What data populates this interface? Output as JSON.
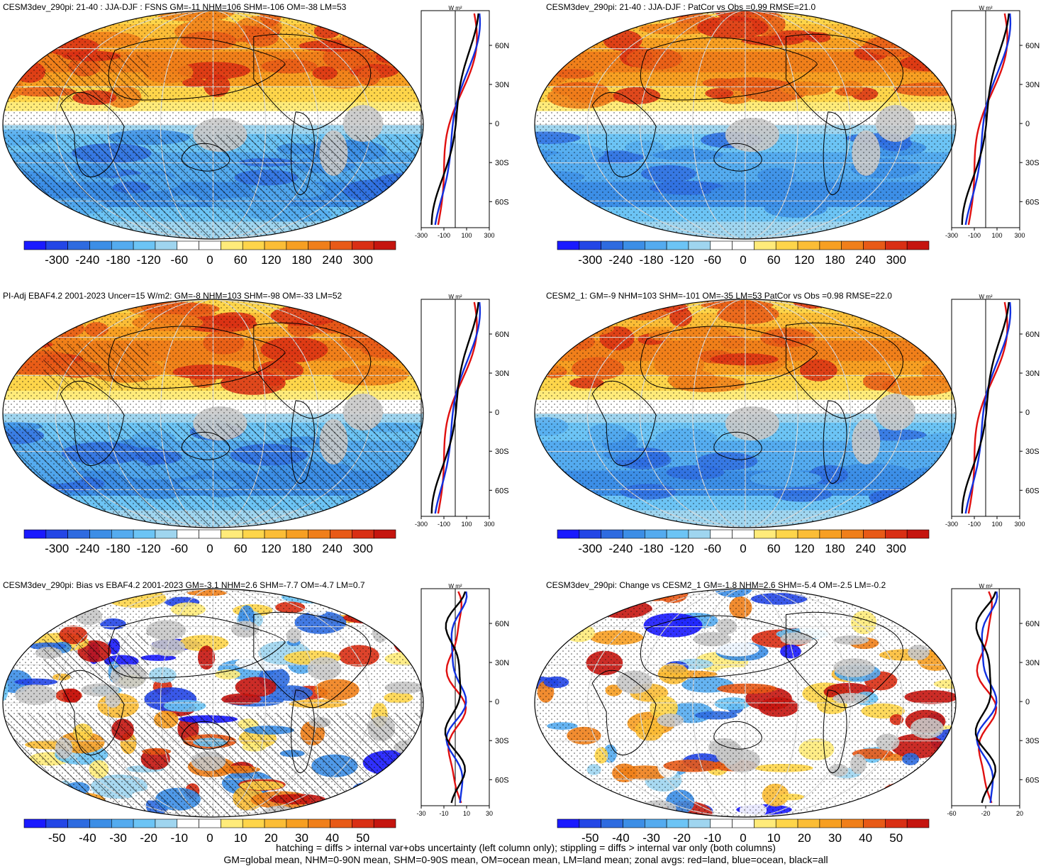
{
  "panels": [
    {
      "title": "CESM3dev_290pi: 21-40 : JJA-DJF : FSNS GM=-11 NHM=106 SHM=-106 OM=-38 LM=53",
      "kind": "abs",
      "colorbar_ticks": [
        "-300",
        "-240",
        "-180",
        "-120",
        "-60",
        "0",
        "60",
        "120",
        "180",
        "240",
        "300"
      ],
      "zonal_xticks": [
        "-300",
        "-100",
        "100",
        "300"
      ],
      "zonal_xrange": [
        -300,
        300
      ],
      "hatched": true
    },
    {
      "title": "CESM3dev_290pi: 21-40 : JJA-DJF : PatCor vs Obs =0.99 RMSE=21.0",
      "kind": "abs",
      "colorbar_ticks": [
        "-300",
        "-240",
        "-180",
        "-120",
        "-60",
        "0",
        "60",
        "120",
        "180",
        "240",
        "300"
      ],
      "zonal_xticks": [
        "-300",
        "-100",
        "100",
        "300"
      ],
      "zonal_xrange": [
        -300,
        300
      ],
      "hatched": false
    },
    {
      "title": "PI-Adj EBAF4.2 2001-2023 Uncer=15 W/m2: GM=-8 NHM=103 SHM=-98 OM=-33 LM=52",
      "kind": "abs",
      "colorbar_ticks": [
        "-300",
        "-240",
        "-180",
        "-120",
        "-60",
        "0",
        "60",
        "120",
        "180",
        "240",
        "300"
      ],
      "zonal_xticks": [
        "-300",
        "-100",
        "100",
        "300"
      ],
      "zonal_xrange": [
        -300,
        300
      ],
      "hatched": true
    },
    {
      "title": "CESM2_1: GM=-9 NHM=103 SHM=-101 OM=-35 LM=53 PatCor vs Obs =0.98 RMSE=22.0",
      "kind": "abs",
      "colorbar_ticks": [
        "-300",
        "-240",
        "-180",
        "-120",
        "-60",
        "0",
        "60",
        "120",
        "180",
        "240",
        "300"
      ],
      "zonal_xticks": [
        "-300",
        "-100",
        "100",
        "300"
      ],
      "zonal_xrange": [
        -300,
        300
      ],
      "hatched": false
    },
    {
      "title": "CESM3dev_290pi: Bias vs EBAF4.2 2001-2023 GM=-3.1 NHM=2.6 SHM=-7.7 OM=-4.7 LM=0.7",
      "kind": "diff",
      "colorbar_ticks": [
        "-50",
        "-40",
        "-30",
        "-20",
        "-10",
        "0",
        "10",
        "20",
        "30",
        "40",
        "50"
      ],
      "zonal_xticks": [
        "-30",
        "-10",
        "10",
        "30"
      ],
      "zonal_xrange": [
        -30,
        30
      ],
      "hatched": true
    },
    {
      "title": "CESM3dev_290pi: Change vs CESM2_1 GM=-1.8 NHM=2.6 SHM=-5.4 OM=-2.5 LM=-0.2",
      "kind": "diff",
      "colorbar_ticks": [
        "-50",
        "-40",
        "-30",
        "-20",
        "-10",
        "0",
        "10",
        "20",
        "30",
        "40",
        "50"
      ],
      "zonal_xticks": [
        "-60",
        "-20",
        "20"
      ],
      "zonal_xrange": [
        -70,
        30
      ],
      "hatched": false
    }
  ],
  "zonal_units": "W m²",
  "zonal_yticks": [
    "60N",
    "30N",
    "0",
    "30S",
    "60S"
  ],
  "colors": {
    "scale": [
      "#1a1aff",
      "#2346e6",
      "#2e6be0",
      "#3c8ee6",
      "#54abef",
      "#6cc4f5",
      "#9fd5ef",
      "#ffffff",
      "#ffffff",
      "#ffeb7a",
      "#fed54a",
      "#fbbd36",
      "#f79f22",
      "#f07f1a",
      "#e85a17",
      "#d92f14",
      "#c5150f"
    ],
    "land": "#c8c8c8",
    "zonal_land": "#e01010",
    "zonal_ocean": "#1030e0",
    "zonal_all": "#000000"
  },
  "chart_data": [
    {
      "type": "heatmap",
      "title": "CESM3dev_290pi: 21-40 : JJA-DJF : FSNS GM=-11 NHM=106 SHM=-106 OM=-38 LM=53",
      "colorbar": [
        -300,
        300
      ],
      "zonal_series": [
        "land",
        "ocean",
        "all"
      ]
    },
    {
      "type": "heatmap",
      "title": "CESM3dev_290pi: 21-40 : JJA-DJF : PatCor vs Obs =0.99 RMSE=21.0",
      "colorbar": [
        -300,
        300
      ],
      "zonal_series": [
        "land",
        "ocean",
        "all"
      ]
    },
    {
      "type": "heatmap",
      "title": "PI-Adj EBAF4.2 2001-2023 Uncer=15 W/m2: GM=-8 NHM=103 SHM=-98 OM=-33 LM=52",
      "colorbar": [
        -300,
        300
      ],
      "zonal_series": [
        "land",
        "ocean",
        "all"
      ]
    },
    {
      "type": "heatmap",
      "title": "CESM2_1: GM=-9 NHM=103 SHM=-101 OM=-35 LM=53 PatCor vs Obs =0.98 RMSE=22.0",
      "colorbar": [
        -300,
        300
      ],
      "zonal_series": [
        "land",
        "ocean",
        "all"
      ]
    },
    {
      "type": "heatmap",
      "title": "CESM3dev_290pi: Bias vs EBAF4.2 2001-2023 GM=-3.1 NHM=2.6 SHM=-7.7 OM=-4.7 LM=0.7",
      "colorbar": [
        -50,
        50
      ],
      "zonal_series": [
        "land",
        "ocean",
        "all"
      ]
    },
    {
      "type": "heatmap",
      "title": "CESM3dev_290pi: Change vs CESM2_1 GM=-1.8 NHM=2.6 SHM=-5.4 OM=-2.5 LM=-0.2",
      "colorbar": [
        -50,
        50
      ],
      "zonal_series": [
        "land",
        "ocean",
        "all"
      ]
    }
  ],
  "footer": {
    "line1": "hatching = diffs > internal var+obs uncertainty (left column only); stippling = diffs > internal var only (both columns)",
    "line2": "GM=global mean, NHM=0-90N mean, SHM=0-90S mean, OM=ocean mean, LM=land mean; zonal avgs: red=land, blue=ocean, black=all"
  }
}
